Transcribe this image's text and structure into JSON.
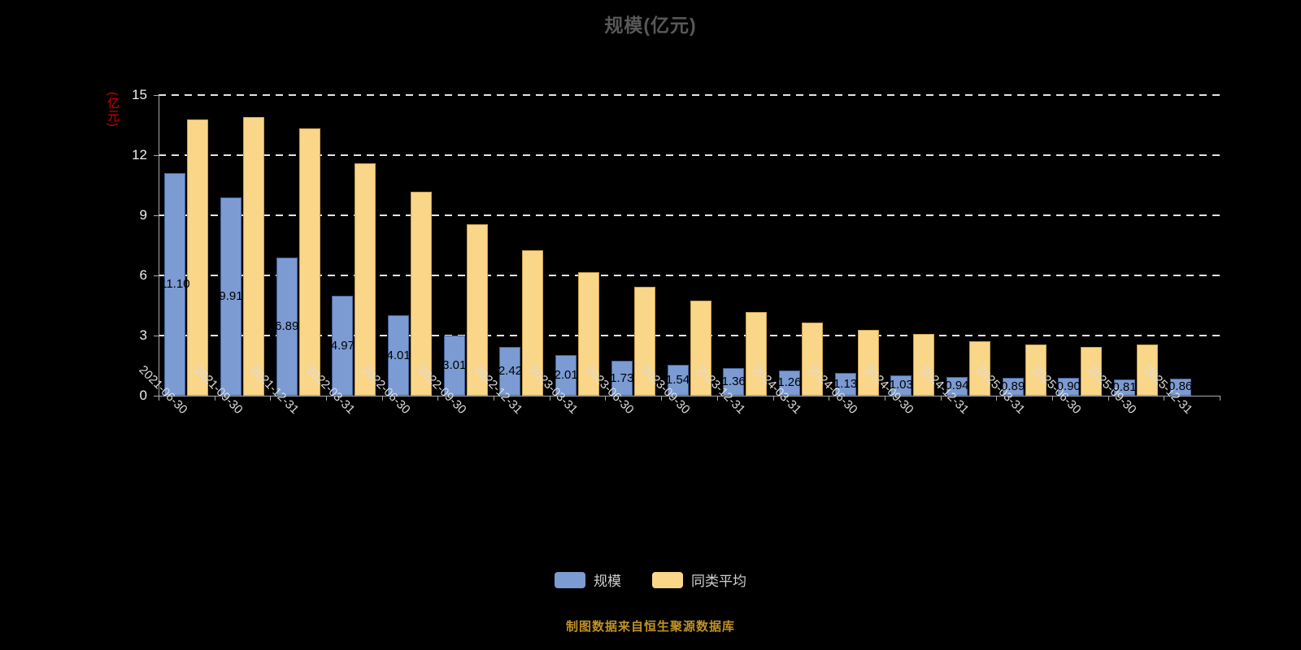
{
  "title": "规模(亿元)",
  "y_axis_name": "(亿元)",
  "footer": "制图数据来自恒生聚源数据库",
  "colors": {
    "background": "#000000",
    "scale_bar": "#7b9bd2",
    "scale_bar_border": "#44609b",
    "peer_bar": "#fad689",
    "peer_bar_border": "#c79f4e",
    "grid_line": "#f0f0f0",
    "axis_line": "#aaaaaa",
    "y_axis_name_color": "#dd0000",
    "footer_color": "#bf9226",
    "title_color": "#585858",
    "tick_label_color": "#ededed",
    "bar_label_color": "#000000"
  },
  "chart_data": {
    "type": "bar",
    "title": "规模(亿元)",
    "ylabel": "(亿元)",
    "ylim": [
      0,
      15
    ],
    "yticks": [
      0,
      3,
      6,
      9,
      12,
      15
    ],
    "grid": "dashed-horizontal",
    "legend_position": "bottom",
    "categories": [
      "2021-06-30",
      "2021-09-30",
      "2021-12-31",
      "2022-03-31",
      "2022-06-30",
      "2022-09-30",
      "2022-12-31",
      "2023-03-31",
      "2023-06-30",
      "2023-09-30",
      "2023-12-31",
      "2024-03-31",
      "2024-06-30",
      "2024-09-30",
      "2024-12-31",
      "2025-03-31",
      "2025-06-30",
      "2025-09-30",
      "2025-12-31"
    ],
    "series": [
      {
        "name": "规模",
        "color": "#7b9bd2",
        "border": "#44609b",
        "values": [
          11.1,
          9.91,
          6.89,
          4.97,
          4.01,
          3.01,
          2.42,
          2.01,
          1.73,
          1.54,
          1.36,
          1.26,
          1.13,
          1.03,
          0.94,
          0.89,
          0.9,
          0.81,
          0.86
        ],
        "labels": [
          "11.10",
          "9.91",
          "6.89",
          "4.97",
          "4.01",
          "3.01",
          "2.42",
          "2.01",
          "1.73",
          "1.54",
          "1.36",
          "1.26",
          "1.13",
          "1.03",
          "0.94",
          "0.89",
          "0.90",
          "0.81",
          "0.86"
        ]
      },
      {
        "name": "同类平均",
        "color": "#fad689",
        "border": "#c79f4e",
        "values": [
          13.78,
          13.9,
          13.34,
          11.6,
          10.17,
          8.55,
          7.26,
          6.16,
          5.43,
          4.74,
          4.17,
          3.65,
          3.28,
          3.08,
          2.72,
          2.55,
          2.43,
          2.55,
          0
        ]
      }
    ]
  }
}
